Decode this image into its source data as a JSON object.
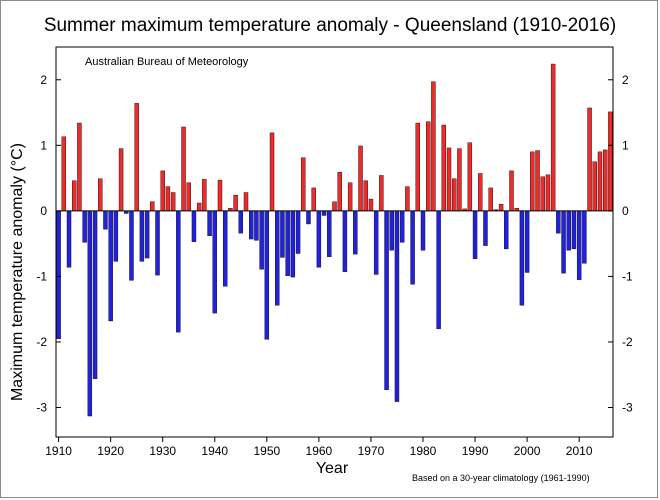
{
  "chart_data": {
    "type": "bar",
    "title": "Summer maximum temperature anomaly - Queensland (1910-2016)",
    "source_note": "Australian Bureau of Meteorology",
    "footnote": "Based on a 30-year climatology (1961-1990)",
    "xlabel": "Year",
    "ylabel": "Maximum temperature anomaly (°C)",
    "xlim": [
      1909.5,
      2016.5
    ],
    "ylim": [
      -3.45,
      2.5
    ],
    "x_ticks": [
      1910,
      1920,
      1930,
      1940,
      1950,
      1960,
      1970,
      1980,
      1990,
      2000,
      2010
    ],
    "x_tick_labels": [
      "1910",
      "1920",
      "1930",
      "1940",
      "1950",
      "1960",
      "1970",
      "1980",
      "1990",
      "2000",
      "2010"
    ],
    "y_ticks": [
      -3,
      -2,
      -1,
      0,
      1,
      2
    ],
    "y_tick_labels": [
      "-3",
      "-2",
      "-1",
      "0",
      "1",
      "2"
    ],
    "grid": false,
    "colors": {
      "positive": "#ee2a2a",
      "negative": "#2222dd",
      "edge": "#000000"
    },
    "x": [
      1910,
      1911,
      1912,
      1913,
      1914,
      1915,
      1916,
      1917,
      1918,
      1919,
      1920,
      1921,
      1922,
      1923,
      1924,
      1925,
      1926,
      1927,
      1928,
      1929,
      1930,
      1931,
      1932,
      1933,
      1934,
      1935,
      1936,
      1937,
      1938,
      1939,
      1940,
      1941,
      1942,
      1943,
      1944,
      1945,
      1946,
      1947,
      1948,
      1949,
      1950,
      1951,
      1952,
      1953,
      1954,
      1955,
      1956,
      1957,
      1958,
      1959,
      1960,
      1961,
      1962,
      1963,
      1964,
      1965,
      1966,
      1967,
      1968,
      1969,
      1970,
      1971,
      1972,
      1973,
      1974,
      1975,
      1976,
      1977,
      1978,
      1979,
      1980,
      1981,
      1982,
      1983,
      1984,
      1985,
      1986,
      1987,
      1988,
      1989,
      1990,
      1991,
      1992,
      1993,
      1994,
      1995,
      1996,
      1997,
      1998,
      1999,
      2000,
      2001,
      2002,
      2003,
      2004,
      2005,
      2006,
      2007,
      2008,
      2009,
      2010,
      2011,
      2012,
      2013,
      2014,
      2015,
      2016
    ],
    "values": [
      -1.95,
      1.13,
      -0.86,
      0.46,
      1.34,
      -0.48,
      -3.13,
      -2.56,
      0.49,
      -0.28,
      -1.68,
      -0.77,
      0.95,
      -0.04,
      -1.06,
      1.64,
      -0.77,
      -0.72,
      0.14,
      -0.98,
      0.61,
      0.37,
      0.28,
      -1.85,
      1.28,
      0.43,
      -0.47,
      0.12,
      0.48,
      -0.38,
      -1.56,
      0.47,
      -1.15,
      0.04,
      0.24,
      -0.34,
      0.28,
      -0.43,
      -0.45,
      -0.89,
      -1.96,
      1.19,
      -1.44,
      -0.71,
      -0.99,
      -1.01,
      -0.65,
      0.81,
      -0.2,
      0.35,
      -0.86,
      -0.07,
      -0.7,
      0.14,
      0.59,
      -0.93,
      0.43,
      -0.66,
      0.99,
      0.46,
      0.18,
      -0.97,
      0.54,
      -2.73,
      -0.6,
      -2.91,
      -0.48,
      0.37,
      -1.12,
      1.34,
      -0.6,
      1.36,
      1.97,
      -1.8,
      1.31,
      0.96,
      0.49,
      0.95,
      0.03,
      1.04,
      -0.73,
      0.57,
      -0.53,
      0.35,
      0.02,
      0.1,
      -0.58,
      0.61,
      0.04,
      -1.44,
      -0.94,
      0.9,
      0.92,
      0.52,
      0.55,
      2.24,
      -0.34,
      -0.95,
      -0.6,
      -0.58,
      -1.05,
      -0.8,
      1.57,
      0.75,
      0.9,
      0.93,
      1.51
    ]
  }
}
